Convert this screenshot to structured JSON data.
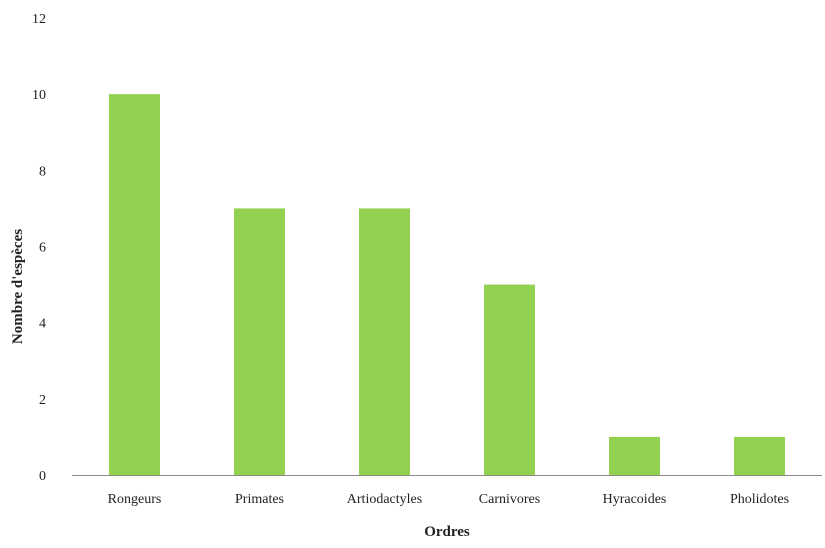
{
  "chart_data": {
    "type": "bar",
    "categories": [
      "Rongeurs",
      "Primates",
      "Artiodactyles",
      "Carnivores",
      "Hyracoides",
      "Pholidotes"
    ],
    "values": [
      10,
      7,
      7,
      5,
      1,
      1
    ],
    "title": "",
    "xlabel": "Ordres",
    "ylabel": "Nombre d'espèces",
    "ylim": [
      0,
      12
    ],
    "yticks": [
      0,
      2,
      4,
      6,
      8,
      10,
      12
    ],
    "grid": false,
    "legend": "none",
    "bar_color": "#92d050"
  }
}
